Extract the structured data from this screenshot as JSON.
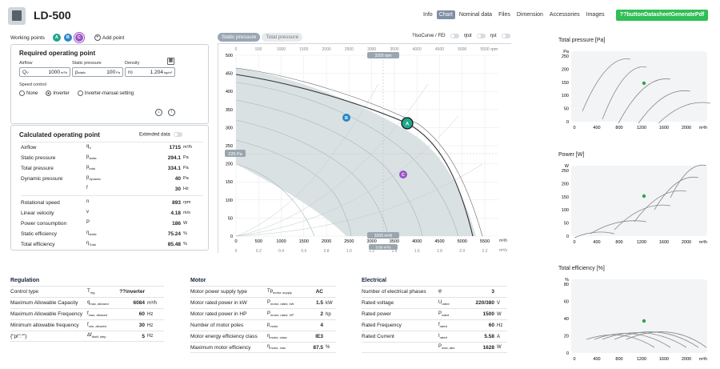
{
  "header": {
    "title": "LD-500",
    "tabs": [
      "Info",
      "Chart",
      "Nominal data",
      "Files",
      "Dimension",
      "Accessories",
      "Images"
    ],
    "active_tab": "Chart",
    "pdf_button": "??buttonDatasheetGeneratePdf"
  },
  "working_points": {
    "label": "Working points",
    "points": [
      "A",
      "B",
      "C"
    ],
    "add_label": "Add point"
  },
  "required": {
    "title": "Required operating point",
    "airflow_label": "Airflow",
    "airflow_sym": "Q",
    "airflow_sub": "V",
    "airflow_value": "1000",
    "airflow_unit": "m³/h",
    "static_label": "Static pressure",
    "static_sym": "p",
    "static_sub": "static",
    "static_value": "100",
    "static_unit": "Pa",
    "density_label": "Density",
    "density_sym": "ro",
    "density_value": "1.204",
    "density_unit": "kg/m³",
    "speed_control_label": "Speed control",
    "speed_options": [
      "None",
      "Inverter",
      "Inverter-manual setting"
    ],
    "speed_selected": "Inverter"
  },
  "calculated": {
    "title": "Calculated operating point",
    "extended_label": "Extended data",
    "rows": [
      {
        "label": "Airflow",
        "sym": "q",
        "sub": "V",
        "value": "1715",
        "unit": "m³/h"
      },
      {
        "label": "Static pressure",
        "sym": "p",
        "sub": "static",
        "value": "294.1",
        "unit": "Pa"
      },
      {
        "label": "Total pressure",
        "sym": "p",
        "sub": "total",
        "value": "334.1",
        "unit": "Pa"
      },
      {
        "label": "Dynamic pressure",
        "sym": "p",
        "sub": "dynamic",
        "value": "40",
        "unit": "Pa"
      },
      {
        "label": "",
        "sym": "f",
        "sub": "",
        "value": "30",
        "unit": "Hz"
      },
      {
        "label": "Rotational speed",
        "sym": "n",
        "sub": "",
        "value": "893",
        "unit": "rpm"
      },
      {
        "label": "Linear velocity",
        "sym": "v",
        "sub": "",
        "value": "4.18",
        "unit": "m/s"
      },
      {
        "label": "Power consumption",
        "sym": "P",
        "sub": "",
        "value": "186",
        "unit": "W"
      },
      {
        "label": "Static efficiency",
        "sym": "η",
        "sub": "static",
        "value": "75.24",
        "unit": "%"
      },
      {
        "label": "Total efficiency",
        "sym": "η",
        "sub": "Total",
        "value": "85.48",
        "unit": "%"
      }
    ]
  },
  "main_chart": {
    "toggle_on": "Static pressure",
    "toggle_off": "Total pressure",
    "checks": [
      "?IsoCurve / FEI",
      "ηtot",
      "ηst"
    ],
    "x_ticks": [
      "0",
      "500",
      "1000",
      "1500",
      "2000",
      "2500",
      "3000",
      "3500",
      "4000",
      "4500",
      "5000",
      "5500"
    ],
    "x_unit": "m³/h",
    "x2_ticks": [
      "0",
      "0.2",
      "0.4",
      "0.6",
      "0.8",
      "1.0",
      "1.2",
      "1.4",
      "1.6",
      "1.8",
      "2.0",
      "2.2"
    ],
    "x2_unit": "m³/s",
    "x_unit_top": "rpm",
    "y_ticks": [
      "0",
      "50",
      "100",
      "150",
      "200",
      "250",
      "300",
      "350",
      "400",
      "450",
      "500"
    ],
    "y_marker": "225 Pa",
    "x_marker_top": "3200 rpm",
    "x_marker_bottom": "3200 m³/h",
    "x_marker_bottom2": "0.89 m³/s"
  },
  "small_charts": [
    {
      "title": "Total pressure [Pa]",
      "y_unit": "Pa",
      "y_ticks": [
        "0",
        "50",
        "100",
        "150",
        "200",
        "250"
      ],
      "x_ticks": [
        "0",
        "400",
        "800",
        "1200",
        "1600",
        "2000"
      ],
      "x_unit": "m³/h"
    },
    {
      "title": "Power [W]",
      "y_unit": "W",
      "y_ticks": [
        "0",
        "50",
        "100",
        "150",
        "200",
        "250"
      ],
      "x_ticks": [
        "0",
        "400",
        "800",
        "1200",
        "1600",
        "2000"
      ],
      "x_unit": "m³/h"
    },
    {
      "title": "Total efficiency [%]",
      "y_unit": "%",
      "y_ticks": [
        "0",
        "20",
        "40",
        "60",
        "80"
      ],
      "x_ticks": [
        "0",
        "400",
        "800",
        "1200",
        "1600",
        "2000"
      ],
      "x_unit": "m³/h"
    }
  ],
  "regulation": {
    "title": "Regulation",
    "rows": [
      {
        "label": "Control type",
        "sym": "T",
        "sub": "reg",
        "value": "??inverter",
        "unit": ""
      },
      {
        "label": "Maximum Allowable Capacity",
        "sym": "q",
        "sub": "max, allowed",
        "value": "6084",
        "unit": "m³/h"
      },
      {
        "label": "Maximum Allowable Frequency",
        "sym": "f",
        "sub": "max, allowed",
        "value": "60",
        "unit": "Hz"
      },
      {
        "label": "Minimum allowable frequency",
        "sym": "f",
        "sub": "min, allowed",
        "value": "30",
        "unit": "Hz"
      },
      {
        "label": "{\"pl\":\"\"}",
        "sym": "Δf",
        "sub": "draft, step",
        "value": "5",
        "unit": "Hz"
      }
    ]
  },
  "motor": {
    "title": "Motor",
    "rows": [
      {
        "label": "Motor power supply type",
        "sym": "Tp",
        "sub": "motor, supply",
        "value": "AC",
        "unit": ""
      },
      {
        "label": "Motor rated power in kW",
        "sym": "P",
        "sub": "motor, rated, kW",
        "value": "1.5",
        "unit": "kW"
      },
      {
        "label": "Motor rated power in HP",
        "sym": "P",
        "sub": "motor, rated, HP",
        "value": "2",
        "unit": "hp"
      },
      {
        "label": "Number of motor poles",
        "sym": "p",
        "sub": "motor",
        "value": "4",
        "unit": ""
      },
      {
        "label": "Motor energy efficiency class",
        "sym": "η",
        "sub": "motor, class",
        "value": "IE3",
        "unit": ""
      },
      {
        "label": "Maximum motor efficiency",
        "sym": "η",
        "sub": "motor, max",
        "value": "87.5",
        "unit": "%"
      }
    ]
  },
  "electrical": {
    "title": "Electrical",
    "rows": [
      {
        "label": "Number of electrical phases",
        "sym": "φ",
        "sub": "",
        "value": "3",
        "unit": ""
      },
      {
        "label": "Rated voltage",
        "sym": "U",
        "sub": "rated",
        "value": "220/380",
        "unit": "V"
      },
      {
        "label": "Rated power",
        "sym": "P",
        "sub": "rated",
        "value": "1500",
        "unit": "W"
      },
      {
        "label": "Rated Frequency",
        "sym": "f",
        "sub": "rated",
        "value": "60",
        "unit": "Hz"
      },
      {
        "label": "Rated Current",
        "sym": "I",
        "sub": "rated",
        "value": "5.58",
        "unit": "A"
      },
      {
        "label": "",
        "sym": "P",
        "sub": "max, abs",
        "value": "1628",
        "unit": "W"
      }
    ]
  },
  "colors": {
    "accent_green": "#2fbf55",
    "point_a": "#1fa78b",
    "point_b": "#2b86c7",
    "point_c": "#9a55c2",
    "tab_active": "#7f8fa6"
  }
}
